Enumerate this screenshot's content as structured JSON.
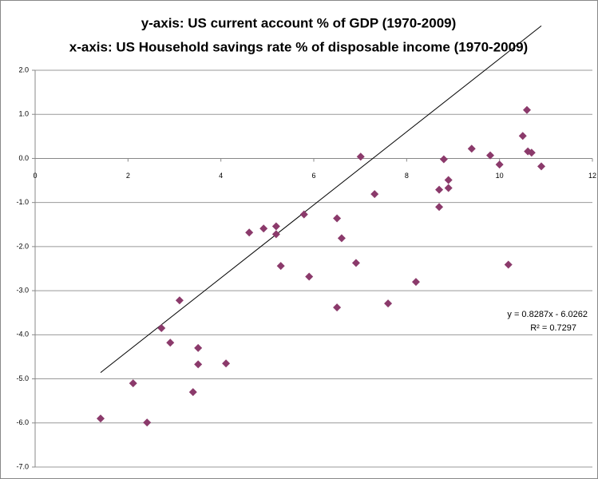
{
  "chart_data": {
    "type": "scatter",
    "title": "y-axis: US current account % of GDP (1970-2009)",
    "subtitle": "x-axis: US Household savings rate % of disposable income (1970-2009)",
    "series": [
      {
        "color": "#8b3a6b",
        "x": [
          1.41,
          2.11,
          2.41,
          2.72,
          2.91,
          3.11,
          3.4,
          3.51,
          3.51,
          4.11,
          4.61,
          4.92,
          5.19,
          5.19,
          5.29,
          5.79,
          5.9,
          6.5,
          6.6,
          6.5,
          6.91,
          7.01,
          7.31,
          7.6,
          8.2,
          8.7,
          8.7,
          8.8,
          8.9,
          8.9,
          9.4,
          9.8,
          10.0,
          10.19,
          10.5,
          10.59,
          10.61,
          10.69,
          10.9
        ],
        "values": [
          -5.9,
          -5.1,
          -5.99,
          -3.85,
          -4.18,
          -3.22,
          -5.3,
          -4.3,
          -4.67,
          -4.65,
          -1.68,
          -1.59,
          -1.54,
          -1.72,
          -2.44,
          -1.27,
          -2.68,
          -1.36,
          -1.81,
          -3.38,
          -2.37,
          0.04,
          -0.81,
          -3.29,
          -2.8,
          -0.71,
          -1.1,
          -0.02,
          -0.49,
          -0.67,
          0.22,
          0.07,
          -0.14,
          -2.41,
          0.51,
          1.1,
          0.16,
          0.13,
          -0.18
        ]
      }
    ],
    "trendline": {
      "slope": 0.8287,
      "intercept": -6.0262,
      "label": "y = 0.8287x - 6.0262",
      "r2_label": "R² = 0.7297"
    },
    "xlim": [
      0,
      12
    ],
    "xticks": [
      0,
      2,
      4,
      6,
      8,
      10,
      12
    ],
    "ylim": [
      -7,
      2
    ],
    "yticks": [
      {
        "value": 2,
        "label": "2.0"
      },
      {
        "value": 1,
        "label": "1.0"
      },
      {
        "value": 0,
        "label": "0.0"
      },
      {
        "value": -1,
        "label": "-1.0"
      },
      {
        "value": -2,
        "label": "-2.0"
      },
      {
        "value": -3,
        "label": "-3.0"
      },
      {
        "value": -4,
        "label": "-4.0"
      },
      {
        "value": -5,
        "label": "-5.0"
      },
      {
        "value": -6,
        "label": "-6.0"
      },
      {
        "value": -7,
        "label": "-7.0"
      }
    ],
    "grid": true
  }
}
